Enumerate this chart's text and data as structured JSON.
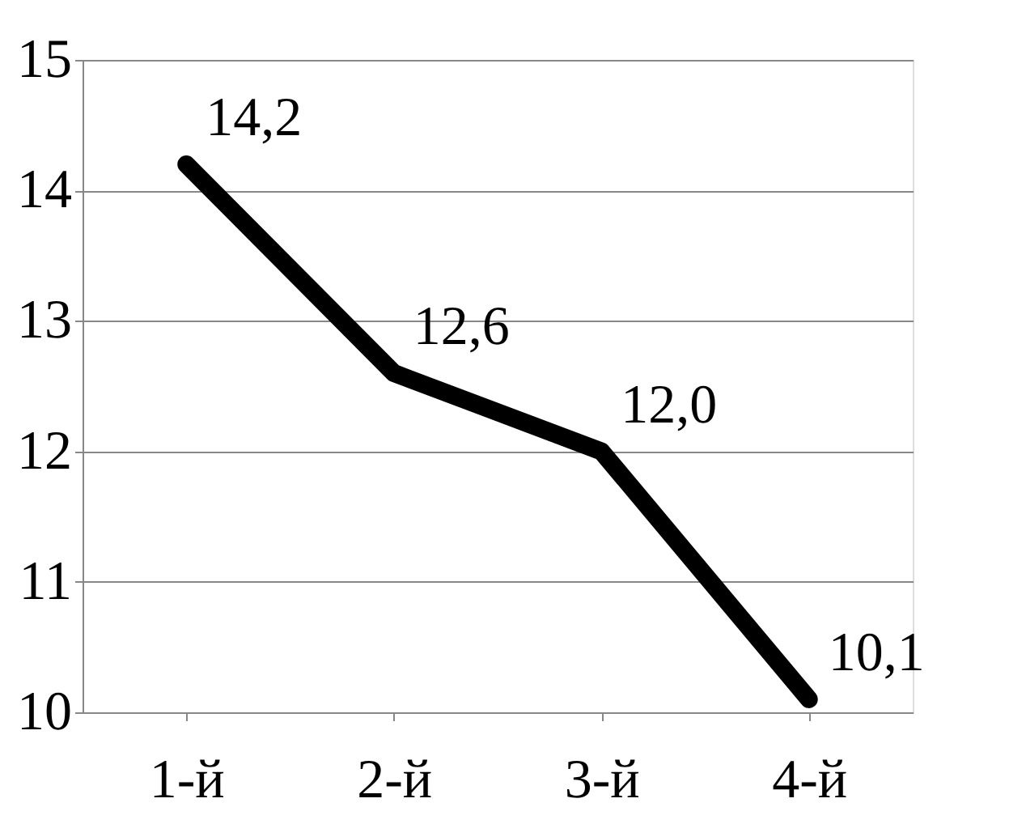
{
  "chart_data": {
    "type": "line",
    "categories": [
      "1-й",
      "2-й",
      "3-й",
      "4-й"
    ],
    "series": [
      {
        "color": "#000000",
        "values": [
          14.2,
          12.6,
          12.0,
          10.1
        ],
        "value_labels": [
          "14,2",
          "12,6",
          "12,0",
          "10,1"
        ]
      }
    ],
    "ylim": [
      10,
      15
    ],
    "yticks": [
      10,
      11,
      12,
      13,
      14,
      15
    ],
    "grid": "y",
    "line_style": "solid"
  }
}
